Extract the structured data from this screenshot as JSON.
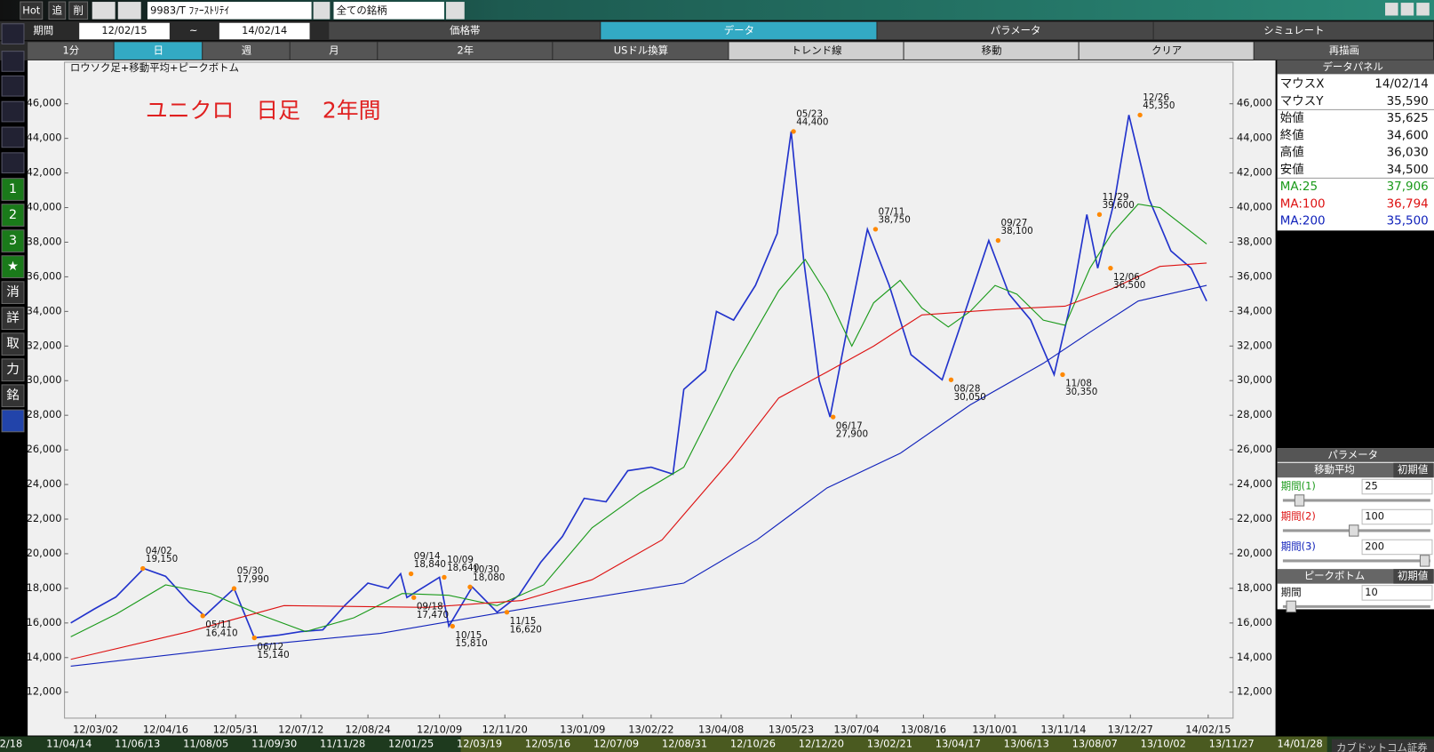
{
  "toolbar": {
    "buttons": [
      "Hot",
      "追",
      "削"
    ],
    "symbol": "9983/T ﾌｧｰｽﾄﾘﾃｲ",
    "market": "全ての銘柄"
  },
  "period": {
    "label": "期間",
    "from": "12/02/15",
    "sep": "~",
    "to": "14/02/14"
  },
  "tabs": [
    "価格帯",
    "データ",
    "パラメータ",
    "シミュレート"
  ],
  "buttons": [
    "1分",
    "日",
    "週",
    "月",
    "2年",
    "USドル換算",
    "トレンド線",
    "移動",
    "クリア",
    "再描画"
  ],
  "side_tools": [
    "1",
    "2",
    "3",
    "★",
    "消",
    "詳",
    "取",
    "力",
    "銘"
  ],
  "chart_data": {
    "type": "line",
    "title": "ロウソク足+移動平均+ピークボトム",
    "caption": "ユニクロ　日足　2年間",
    "xlim": [
      "12/02/11",
      "14/03/03"
    ],
    "xticks": [
      "12/03/02",
      "12/04/16",
      "12/05/31",
      "12/07/12",
      "12/08/24",
      "12/10/09",
      "12/11/20",
      "13/01/09",
      "13/02/22",
      "13/04/08",
      "13/05/23",
      "13/07/04",
      "13/08/16",
      "13/10/01",
      "13/11/14",
      "13/12/27",
      "14/02/15"
    ],
    "ylim": [
      10500,
      48400
    ],
    "yticks": [
      {
        "value": 12000,
        "label": "12,000"
      },
      {
        "value": 14000,
        "label": "14,000"
      },
      {
        "value": 16000,
        "label": "16,000"
      },
      {
        "value": 18000,
        "label": "18,000"
      },
      {
        "value": 20000,
        "label": "20,000"
      },
      {
        "value": 22000,
        "label": "22,000"
      },
      {
        "value": 24000,
        "label": "24,000"
      },
      {
        "value": 26000,
        "label": "26,000"
      },
      {
        "value": 28000,
        "label": "28,000"
      },
      {
        "value": 30000,
        "label": "30,000"
      },
      {
        "value": 32000,
        "label": "32,000"
      },
      {
        "value": 34000,
        "label": "34,000"
      },
      {
        "value": 36000,
        "label": "36,000"
      },
      {
        "value": 38000,
        "label": "38,000"
      },
      {
        "value": 40000,
        "label": "40,000"
      },
      {
        "value": 42000,
        "label": "42,000"
      },
      {
        "value": 44000,
        "label": "44,000"
      },
      {
        "value": 46000,
        "label": "46,000"
      }
    ],
    "grid": false,
    "series": [
      {
        "color": "#2233cc",
        "x": [
          "12/02/15",
          "12/03/01",
          "12/03/15",
          "12/04/02",
          "12/04/16",
          "12/05/01",
          "12/05/11",
          "12/05/30",
          "12/06/12",
          "12/06/28",
          "12/07/12",
          "12/07/26",
          "12/08/09",
          "12/08/24",
          "12/09/06",
          "12/09/14",
          "12/09/18",
          "12/10/09",
          "12/10/15",
          "12/10/30",
          "12/11/15",
          "12/11/29",
          "12/12/13",
          "12/12/27",
          "13/01/10",
          "13/01/24",
          "13/02/07",
          "13/02/22",
          "13/03/08",
          "13/03/15",
          "13/03/29",
          "13/04/05",
          "13/04/16",
          "13/04/30",
          "13/05/14",
          "13/05/23",
          "13/05/31",
          "13/06/10",
          "13/06/17",
          "13/06/28",
          "13/07/11",
          "13/07/25",
          "13/08/08",
          "13/08/28",
          "13/09/10",
          "13/09/27",
          "13/10/10",
          "13/10/24",
          "13/11/08",
          "13/11/20",
          "13/11/29",
          "13/12/06",
          "13/12/17",
          "13/12/26",
          "14/01/08",
          "14/01/22",
          "14/02/04",
          "14/02/14"
        ],
        "values": [
          16000,
          16800,
          17500,
          19150,
          18700,
          17200,
          16410,
          17990,
          15140,
          15300,
          15500,
          15600,
          17000,
          18300,
          18000,
          18840,
          17470,
          18640,
          15810,
          18080,
          16620,
          17600,
          19500,
          21000,
          23200,
          23000,
          24800,
          25000,
          24600,
          29500,
          30600,
          34000,
          33500,
          35500,
          38500,
          44400,
          37000,
          30000,
          27900,
          33000,
          38750,
          35500,
          31500,
          30050,
          33500,
          38100,
          35000,
          33500,
          30350,
          35000,
          39600,
          36500,
          40500,
          45350,
          40500,
          37500,
          36500,
          34600
        ]
      },
      {
        "color": "#1a9a1a",
        "x": [
          "12/02/15",
          "12/03/15",
          "12/04/16",
          "12/05/15",
          "12/06/15",
          "12/07/15",
          "12/08/15",
          "12/09/15",
          "12/10/15",
          "12/11/15",
          "12/12/15",
          "13/01/15",
          "13/02/15",
          "13/03/15",
          "13/04/15",
          "13/05/15",
          "13/06/01",
          "13/06/15",
          "13/07/01",
          "13/07/15",
          "13/08/01",
          "13/08/15",
          "13/09/01",
          "13/09/15",
          "13/10/01",
          "13/10/15",
          "13/11/01",
          "13/11/15",
          "13/12/01",
          "13/12/15",
          "14/01/01",
          "14/01/15",
          "14/02/14"
        ],
        "values": [
          15200,
          16500,
          18200,
          17700,
          16500,
          15500,
          16300,
          17700,
          17600,
          17000,
          18200,
          21500,
          23500,
          25000,
          30500,
          35200,
          37000,
          35000,
          32000,
          34500,
          35800,
          34200,
          33100,
          34000,
          35500,
          35000,
          33500,
          33200,
          36500,
          38500,
          40200,
          40000,
          37900
        ]
      },
      {
        "color": "#dd1111",
        "x": [
          "12/02/15",
          "12/05/01",
          "12/07/01",
          "12/10/01",
          "12/12/01",
          "13/01/15",
          "13/03/01",
          "13/04/15",
          "13/05/15",
          "13/06/15",
          "13/07/15",
          "13/08/15",
          "13/10/01",
          "13/11/15",
          "13/12/15",
          "14/01/15",
          "14/02/14"
        ],
        "values": [
          13900,
          15500,
          17000,
          16900,
          17300,
          18500,
          20800,
          25500,
          29000,
          30500,
          32000,
          33800,
          34100,
          34300,
          35300,
          36600,
          36800
        ]
      },
      {
        "color": "#1122bb",
        "x": [
          "12/02/15",
          "12/06/01",
          "12/09/01",
          "12/12/01",
          "13/02/01",
          "13/03/15",
          "13/05/01",
          "13/06/15",
          "13/08/01",
          "13/09/15",
          "13/11/01",
          "13/12/01",
          "14/01/01",
          "14/02/14"
        ],
        "values": [
          13500,
          14600,
          15400,
          16800,
          17700,
          18300,
          20800,
          23800,
          25800,
          28600,
          31000,
          32800,
          34600,
          35500
        ]
      }
    ],
    "annotations": [
      {
        "date": "04/02",
        "value": 19150,
        "label": "19,150"
      },
      {
        "date": "05/11",
        "value": 16410,
        "label": "16,410"
      },
      {
        "date": "05/30",
        "value": 17990,
        "label": "17,990"
      },
      {
        "date": "06/12",
        "value": 15140,
        "label": "15,140"
      },
      {
        "date": "09/14",
        "value": 18840,
        "label": "18,840"
      },
      {
        "date": "09/18",
        "value": 17470,
        "label": "17,470"
      },
      {
        "date": "10/09",
        "value": 18640,
        "label": "18,640"
      },
      {
        "date": "10/15",
        "value": 15810,
        "label": "15,810"
      },
      {
        "date": "10/30",
        "value": 18080,
        "label": "18,080"
      },
      {
        "date": "11/15",
        "value": 16620,
        "label": "16,620"
      },
      {
        "date": "05/23",
        "value": 44400,
        "label": "44,400"
      },
      {
        "date": "06/17",
        "value": 27900,
        "label": "27,900"
      },
      {
        "date": "07/11",
        "value": 38750,
        "label": "38,750"
      },
      {
        "date": "08/28",
        "value": 30050,
        "label": "30,050"
      },
      {
        "date": "09/27",
        "value": 38100,
        "label": "38,100"
      },
      {
        "date": "11/08",
        "value": 30350,
        "label": "30,350"
      },
      {
        "date": "11/29",
        "value": 39600,
        "label": "39,600"
      },
      {
        "date": "12/06",
        "value": 36500,
        "label": "36,500"
      },
      {
        "date": "12/26",
        "value": 45350,
        "label": "45,350"
      }
    ]
  },
  "data_panel": {
    "title": "データパネル",
    "rows": [
      [
        "マウスX",
        "14/02/14"
      ],
      [
        "マウスY",
        "35,590"
      ],
      [
        "始値",
        "35,625"
      ],
      [
        "終値",
        "34,600"
      ],
      [
        "高値",
        "36,030"
      ],
      [
        "安値",
        "34,500"
      ],
      [
        "MA:25",
        "37,906"
      ],
      [
        "MA:100",
        "36,794"
      ],
      [
        "MA:200",
        "35,500"
      ]
    ]
  },
  "param_panel": {
    "title": "パラメータ",
    "ma_header": "移動平均",
    "reset": "初期値",
    "periods": [
      [
        "期間(1)",
        "25"
      ],
      [
        "期間(2)",
        "100"
      ],
      [
        "期間(3)",
        "200"
      ]
    ],
    "peak_header": "ピークボトム",
    "peak_reset": "初期値",
    "peak": [
      "期間",
      "10"
    ]
  },
  "timeline": [
    "2/18",
    "11/04/14",
    "11/06/13",
    "11/08/05",
    "11/09/30",
    "11/11/28",
    "12/01/25",
    "12/03/19",
    "12/05/16",
    "12/07/09",
    "12/08/31",
    "12/10/26",
    "12/12/20",
    "13/02/21",
    "13/04/17",
    "13/06/13",
    "13/08/07",
    "13/10/02",
    "13/11/27",
    "14/01/28"
  ],
  "logo": "カブドットコム証券"
}
